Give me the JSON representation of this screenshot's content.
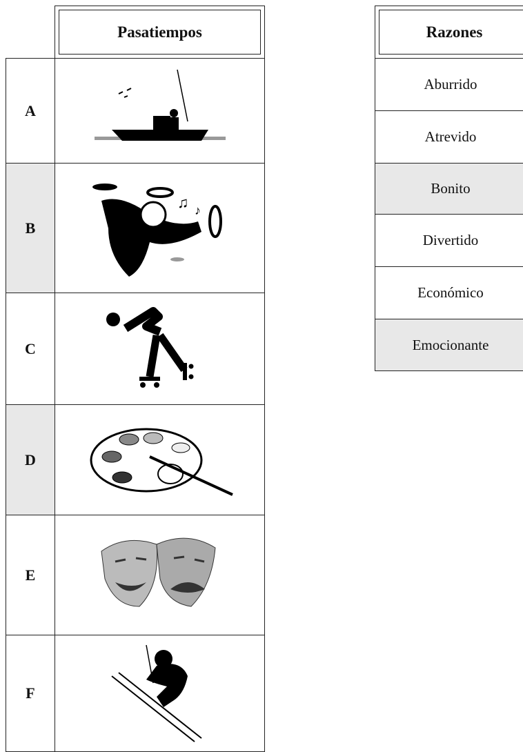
{
  "pastimes": {
    "header": "Pasatiempos",
    "labels": [
      "A",
      "B",
      "C",
      "D",
      "E",
      "F"
    ]
  },
  "reasons": {
    "header": "Razones",
    "items": [
      "Aburrido",
      "Atrevido",
      "Bonito",
      "Divertido",
      "Económico",
      "Emocionante"
    ]
  }
}
